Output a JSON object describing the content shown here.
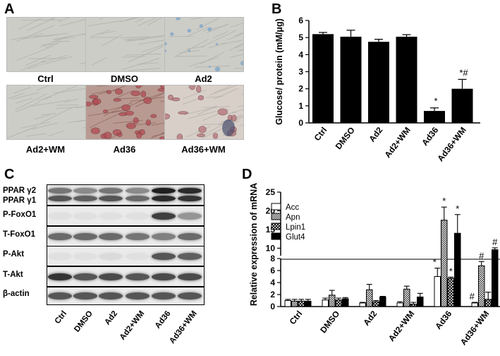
{
  "panels": {
    "A": {
      "letter": "A",
      "labels": [
        "Ctrl",
        "DMSO",
        "Ad2",
        "Ad2+WM",
        "Ad36",
        "Ad36+WM"
      ],
      "styles": [
        "plain",
        "plain",
        "blue",
        "plain",
        "red",
        "mixed"
      ]
    },
    "B": {
      "letter": "B",
      "chart_data": {
        "type": "bar",
        "ylabel": "Glucose/ protein (mM/μg)",
        "categories": [
          "Ctrl",
          "DMSO",
          "Ad2",
          "Ad2+WM",
          "Ad36",
          "Ad36+WM"
        ],
        "values": [
          5.2,
          5.05,
          4.75,
          5.05,
          0.7,
          2.0
        ],
        "errors": [
          0.1,
          0.38,
          0.15,
          0.12,
          0.18,
          0.55
        ],
        "ylim": [
          0,
          6
        ],
        "yticks": [
          0,
          1,
          2,
          3,
          4,
          5,
          6
        ],
        "annotations": [
          {
            "category": "Ad36",
            "text": "*"
          },
          {
            "category": "Ad36+WM",
            "text": "*#"
          }
        ],
        "bar_color": "#000000"
      }
    },
    "C": {
      "letter": "C",
      "rows": [
        {
          "label": "PPAR γ2"
        },
        {
          "label": "PPAR γ1"
        },
        {
          "label": "P-FoxO1"
        },
        {
          "label": "T-FoxO1"
        },
        {
          "label": "P-Akt"
        },
        {
          "label": "T-Akt"
        },
        {
          "label": "β-actin"
        }
      ],
      "lanes": [
        "Ctrl",
        "DMSO",
        "Ad2",
        "Ad2+WM",
        "Ad36",
        "Ad36+WM"
      ]
    },
    "D": {
      "letter": "D",
      "chart_data": {
        "type": "bar",
        "ylabel": "Relative expression of mRNA",
        "categories": [
          "Ctrl",
          "DMSO",
          "Ad2",
          "Ad2+WM",
          "Ad36",
          "Ad36+WM"
        ],
        "series": [
          {
            "name": "Acc",
            "values": [
              1.0,
              1.1,
              0.6,
              0.6,
              5.0,
              0.6
            ],
            "errors": [
              0.2,
              0.3,
              0.1,
              0.2,
              1.4,
              0.1
            ]
          },
          {
            "name": "Apn",
            "values": [
              0.9,
              1.9,
              2.8,
              2.9,
              17.5,
              6.8
            ],
            "errors": [
              0.3,
              0.8,
              0.9,
              0.5,
              3.5,
              0.7
            ]
          },
          {
            "name": "Lpin1",
            "values": [
              0.9,
              1.1,
              0.8,
              0.4,
              4.7,
              1.2
            ],
            "errors": [
              0.3,
              0.3,
              0.2,
              0.3,
              0.2,
              1.2
            ]
          },
          {
            "name": "Glut4",
            "values": [
              0.9,
              1.3,
              1.6,
              1.6,
              14.0,
              9.6
            ],
            "errors": [
              0.3,
              0.2,
              0.1,
              0.6,
              5.0,
              0.5
            ]
          }
        ],
        "yaxis_break": {
          "lower": [
            0,
            8
          ],
          "upper": [
            8,
            25
          ]
        },
        "yticks": [
          0,
          2,
          4,
          6,
          8,
          10,
          15,
          20,
          25
        ],
        "annotations": [
          {
            "category": "Ad36",
            "series": "Acc",
            "text": "*"
          },
          {
            "category": "Ad36",
            "series": "Apn",
            "text": "*"
          },
          {
            "category": "Ad36",
            "series": "Lpin1",
            "text": "*"
          },
          {
            "category": "Ad36",
            "series": "Glut4",
            "text": "*"
          },
          {
            "category": "Ad36+WM",
            "series": "Acc",
            "text": "#"
          },
          {
            "category": "Ad36+WM",
            "series": "Apn",
            "text": "#"
          },
          {
            "category": "Ad36+WM",
            "series": "Glut4",
            "text": "#"
          }
        ],
        "legend_position": "top-left"
      }
    }
  }
}
